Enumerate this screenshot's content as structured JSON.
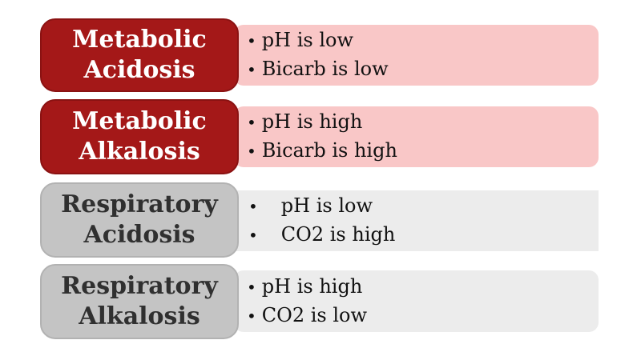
{
  "page": {
    "background": "#ffffff",
    "bullet_glyph": "•"
  },
  "colors": {
    "red_box_fill": "#a41818",
    "red_box_border": "#8a1212",
    "red_box_text": "#ffffff",
    "gray_box_fill": "#c4c4c4",
    "gray_box_border": "#b2b2b2",
    "gray_box_text": "#303030",
    "pink_bar_fill": "#f9c7c7",
    "gray_bar_fill": "#ececec",
    "bullet_text": "#111111"
  },
  "rows": [
    {
      "title_line1": "Metabolic",
      "title_line2": "Acidosis",
      "variant": "red",
      "bullet1": "pH is low",
      "bullet2": "Bicarb is low"
    },
    {
      "title_line1": "Metabolic",
      "title_line2": "Alkalosis",
      "variant": "red",
      "bullet1": "pH is high",
      "bullet2": "Bicarb is high"
    },
    {
      "title_line1": "Respiratory",
      "title_line2": "Acidosis",
      "variant": "gray",
      "bullet1": "pH is low",
      "bullet2": "CO2 is high"
    },
    {
      "title_line1": "Respiratory",
      "title_line2": "Alkalosis",
      "variant": "gray",
      "bullet1": "pH is high",
      "bullet2": "CO2 is low"
    }
  ]
}
